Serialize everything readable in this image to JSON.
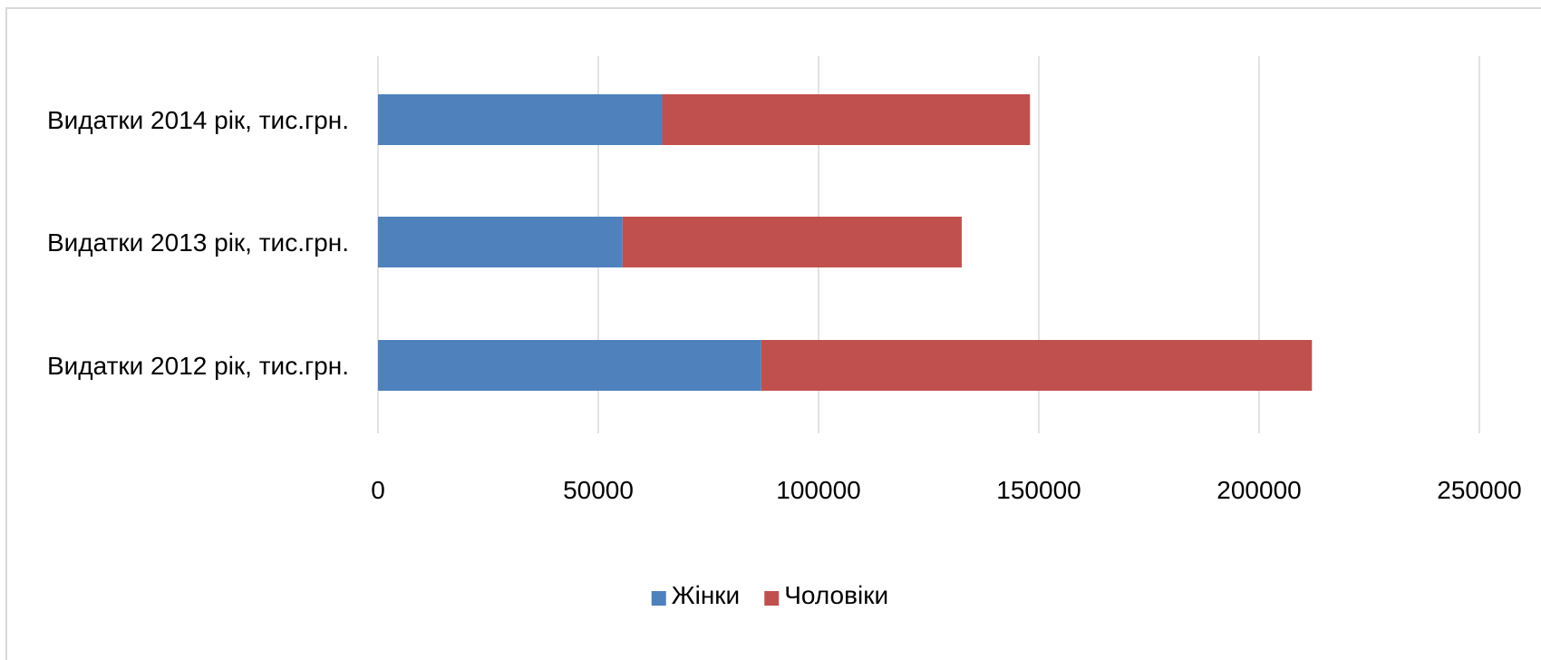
{
  "chart_data": {
    "type": "bar",
    "orientation": "horizontal",
    "stacked": true,
    "title": "",
    "xlabel": "",
    "ylabel": "",
    "categories": [
      "Видатки 2014 рік, тис.грн.",
      "Видатки 2013 рік, тис.грн.",
      "Видатки 2012 рік, тис.грн."
    ],
    "series": [
      {
        "name": "Жінки",
        "color": "#4f81bd",
        "values": [
          64500,
          55500,
          87000
        ]
      },
      {
        "name": "Чоловіки",
        "color": "#c0504d",
        "values": [
          83500,
          77000,
          125000
        ]
      }
    ],
    "xlim": [
      0,
      250000
    ],
    "x_ticks": [
      0,
      50000,
      100000,
      150000,
      200000,
      250000
    ],
    "x_tick_labels": [
      "0",
      "50000",
      "100000",
      "150000",
      "200000",
      "250000"
    ],
    "grid": "vertical",
    "legend_position": "bottom"
  }
}
